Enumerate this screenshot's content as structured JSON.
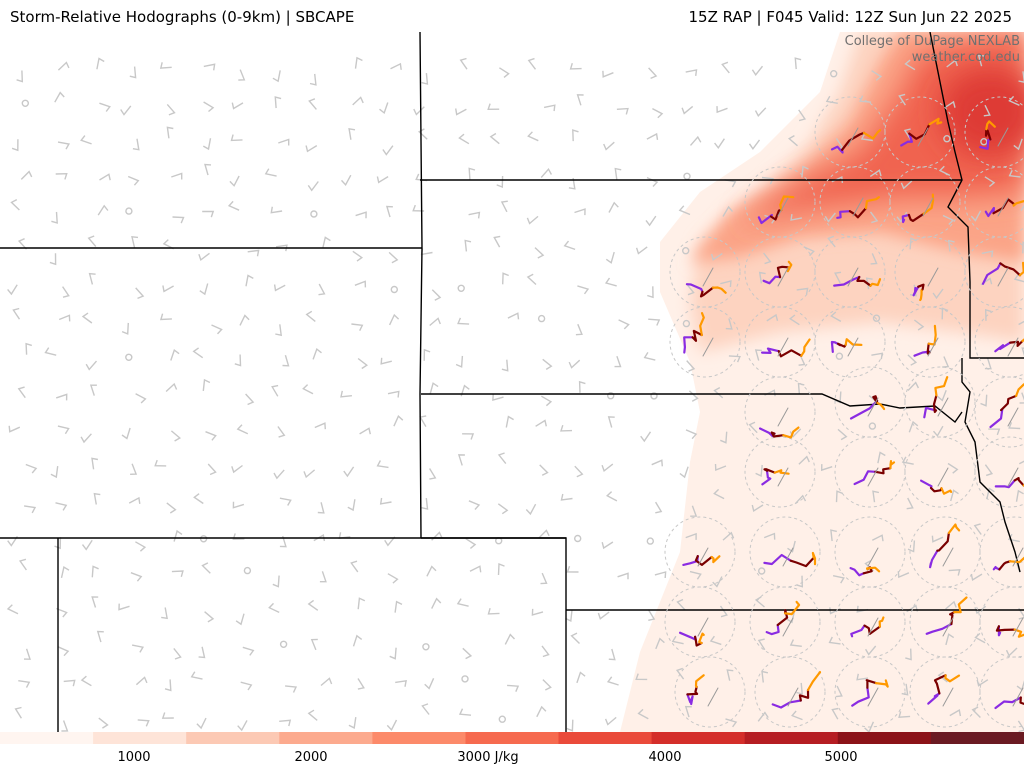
{
  "header": {
    "title_left": "Storm-Relative Hodographs (0-9km) | SBCAPE",
    "title_right": "15Z RAP | F045 Valid: 12Z Sun Jun 22 2025"
  },
  "credit": {
    "line1": "College of DuPage NEXLAB",
    "line2": "weather.cod.edu"
  },
  "colorbar": {
    "unit_label": "3000 J/kg",
    "ticks": [
      "1000",
      "2000",
      "3000 J/kg",
      "4000",
      "5000"
    ],
    "colors": [
      "#fff5f0",
      "#fee4d8",
      "#fcc9b4",
      "#fcaa8e",
      "#fc8a6a",
      "#f66a4f",
      "#ea4a3a",
      "#d42e2a",
      "#b51d22",
      "#8b1218",
      "#6a1a22"
    ]
  },
  "legend_colors": {
    "hodo_0_3km": "#7a0000",
    "hodo_3_6km": "#ff9900",
    "hodo_6_9km": "#8a2be2",
    "boundary": "#000000",
    "wind_barb": "#c8c8c8"
  }
}
